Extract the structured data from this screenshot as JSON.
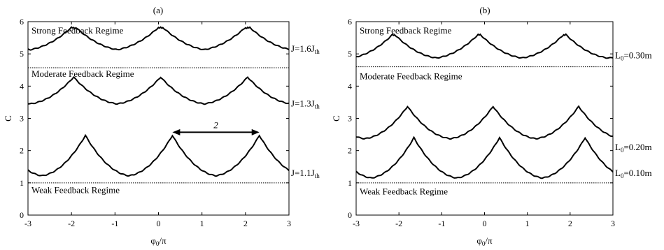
{
  "chart_data": [
    {
      "type": "line",
      "panel_label": "(a)",
      "xlabel": "φ0/π",
      "ylabel": "C",
      "xlim": [
        -3,
        3
      ],
      "ylim": [
        0,
        6
      ],
      "xticks": [
        "-3",
        "-2",
        "-1",
        "0",
        "1",
        "2",
        "3"
      ],
      "yticks": [
        "0",
        "1",
        "2",
        "3",
        "4",
        "5",
        "6"
      ],
      "grid": false,
      "dotted_lines": [
        4.57,
        1.0
      ],
      "regime_labels": [
        {
          "text": "Strong Feedback Regime",
          "y": 5.72
        },
        {
          "text": "Moderate Feedback Regime",
          "y": 4.38
        },
        {
          "text": "Weak Feedback Regime",
          "y": 0.77
        }
      ],
      "annotation": {
        "text": "2",
        "from": [
          0.32,
          2.57
        ],
        "to": [
          2.32,
          2.57
        ]
      },
      "series": [
        {
          "label": "J=1.6J",
          "label_sub": "th",
          "label_y": 5.15,
          "base": 5.12,
          "peak": 5.82,
          "peaks": [
            -1.9,
            0.0,
            2.05
          ],
          "width": 1.0,
          "edge_sharp": 0.25
        },
        {
          "label": "J=1.3J",
          "label_sub": "th",
          "label_y": 3.45,
          "base": 3.45,
          "peak": 4.28,
          "peaks": [
            -1.95,
            0.05,
            2.05
          ],
          "width": 1.0,
          "edge_sharp": 0.2
        },
        {
          "label": "J=1.1J",
          "label_sub": "th",
          "label_y": 1.3,
          "base": 1.22,
          "peak": 2.47,
          "peaks": [
            -1.68,
            0.32,
            2.32
          ],
          "width": 1.0,
          "edge_sharp": 0.15
        }
      ]
    },
    {
      "type": "line",
      "panel_label": "(b)",
      "xlabel": "φ0/π",
      "ylabel": "C",
      "xlim": [
        -3,
        3
      ],
      "ylim": [
        0,
        6
      ],
      "xticks": [
        "-3",
        "-2",
        "-1",
        "0",
        "1",
        "2",
        "3"
      ],
      "yticks": [
        "0",
        "1",
        "2",
        "3",
        "4",
        "5",
        "6"
      ],
      "grid": false,
      "dotted_lines": [
        4.6,
        1.0
      ],
      "regime_labels": [
        {
          "text": "Strong Feedback Regime",
          "y": 5.72
        },
        {
          "text": "Moderate Feedback Regime",
          "y": 4.3
        },
        {
          "text": "Weak Feedback Regime",
          "y": 0.73
        }
      ],
      "series": [
        {
          "label": "L",
          "label_sub": "0",
          "label_suffix": "=0.30m",
          "label_y": 4.95,
          "base": 4.87,
          "peak": 5.6,
          "peaks": [
            -2.15,
            -0.1,
            1.9
          ],
          "width": 1.0,
          "edge_sharp": 0.2
        },
        {
          "label": "L",
          "label_sub": "0",
          "label_suffix": "=0.20m",
          "label_y": 2.1,
          "base": 2.37,
          "peak": 3.37,
          "peaks": [
            -1.8,
            0.2,
            2.2
          ],
          "width": 1.0,
          "edge_sharp": 0.15
        },
        {
          "label": "L",
          "label_sub": "0",
          "label_suffix": "=0.10m",
          "label_y": 1.3,
          "base": 1.15,
          "peak": 2.4,
          "peaks": [
            -1.65,
            0.35,
            2.35
          ],
          "width": 1.0,
          "edge_sharp": 0.15
        }
      ]
    }
  ]
}
